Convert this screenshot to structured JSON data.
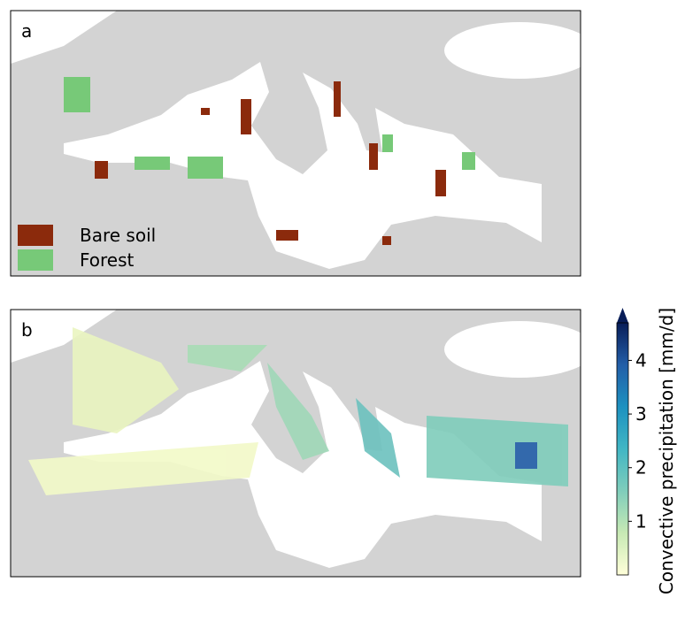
{
  "panels": [
    {
      "label": "a",
      "legend": [
        {
          "name": "Bare soil",
          "color": "#8b2a0c"
        },
        {
          "name": "Forest",
          "color": "#77c978"
        }
      ]
    },
    {
      "label": "b"
    }
  ],
  "colorbar": {
    "label": "Convective precipitation [mm/d]",
    "lim": [
      0,
      4.7
    ],
    "ticks": [
      1,
      2,
      3,
      4
    ],
    "colors": [
      "#ffffd9",
      "#c7e9b4",
      "#7fcdbb",
      "#41b6c4",
      "#1d91c0",
      "#225ea8",
      "#081d58"
    ]
  }
}
